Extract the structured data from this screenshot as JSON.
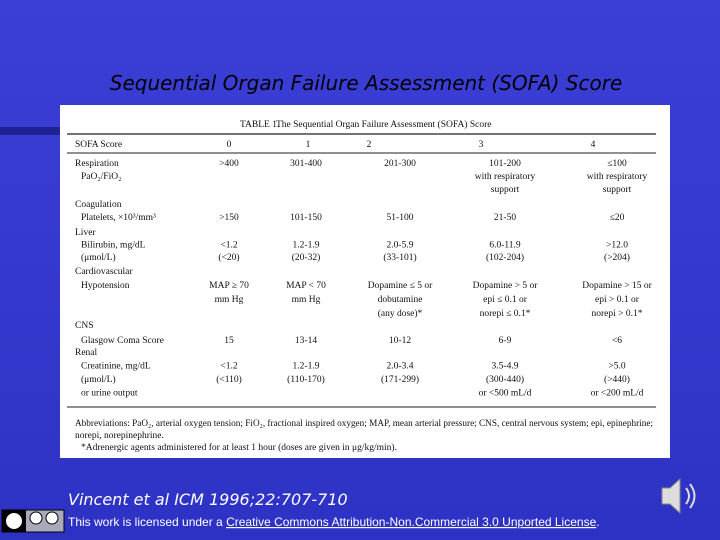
{
  "slide": {
    "title": "Sequential Organ Failure Assessment  (SOFA) Score",
    "citation": "Vincent et al ICM 1996;22:707-710",
    "license_prefix": "This work is licensed under a ",
    "license_link": "Creative Commons Attribution-Non.Commercial 3.0 Unported License",
    "license_suffix": "."
  },
  "table": {
    "caption_label": "TABLE 1.",
    "caption": "The Sequential Organ Failure Assessment (SOFA) Score",
    "header": [
      "SOFA Score",
      "0",
      "1",
      "2",
      "3",
      "4"
    ],
    "rows": [
      {
        "label": [
          "Respiration",
          "PaO₂/FiO₂"
        ],
        "cells": [
          [
            ">400"
          ],
          [
            "301-400"
          ],
          [
            "201-300"
          ],
          [
            "101-200",
            "with respiratory",
            "support"
          ],
          [
            "≤100",
            "with respiratory",
            "support"
          ]
        ]
      },
      {
        "label": [
          "Coagulation",
          "Platelets, ×10³/mm³"
        ],
        "cells": [
          [
            ">150"
          ],
          [
            "101-150"
          ],
          [
            "51-100"
          ],
          [
            "21-50"
          ],
          [
            "≤20"
          ]
        ]
      },
      {
        "label": [
          "Liver",
          "Bilirubin, mg/dL",
          "(μmol/L)"
        ],
        "cells": [
          [
            "<1.2",
            "(<20)"
          ],
          [
            "1.2-1.9",
            "(20-32)"
          ],
          [
            "2.0-5.9",
            "(33-101)"
          ],
          [
            "6.0-11.9",
            "(102-204)"
          ],
          [
            ">12.0",
            "(>204)"
          ]
        ]
      },
      {
        "label": [
          "Cardiovascular",
          "Hypotension"
        ],
        "cells": [
          [
            "MAP ≥ 70",
            "mm Hg"
          ],
          [
            "MAP < 70",
            "mm Hg"
          ],
          [
            "Dopamine ≤ 5 or",
            "dobutamine",
            "(any dose)*"
          ],
          [
            "Dopamine > 5 or",
            "epi ≤ 0.1 or",
            "norepi ≤ 0.1*"
          ],
          [
            "Dopamine > 15 or",
            "epi > 0.1 or",
            "norepi > 0.1*"
          ]
        ]
      },
      {
        "label": [
          "CNS",
          "Glasgow Coma Score"
        ],
        "cells": [
          [
            "15"
          ],
          [
            "13-14"
          ],
          [
            "10-12"
          ],
          [
            "6-9"
          ],
          [
            "<6"
          ]
        ]
      },
      {
        "label": [
          "Renal",
          "Creatinine, mg/dL",
          "(μmol/L)",
          "or urine output"
        ],
        "cells": [
          [
            "<1.2",
            "(<110)"
          ],
          [
            "1.2-1.9",
            "(110-170)"
          ],
          [
            "2.0-3.4",
            "(171-299)"
          ],
          [
            "3.5-4.9",
            "(300-440)",
            "or <500 mL/d"
          ],
          [
            ">5.0",
            "(>440)",
            "or <200 mL/d"
          ]
        ]
      }
    ],
    "abbreviations": [
      "Abbreviations: PaO₂, arterial oxygen tension; FiO₂, fractional inspired oxygen; MAP, mean arterial pressure; CNS, central nervous system; epi, epinephrine;",
      "norepi, norepinephrine."
    ],
    "note": "*Adrenergic agents administered for at least 1 hour (doses are given in μg/kg/min)."
  }
}
